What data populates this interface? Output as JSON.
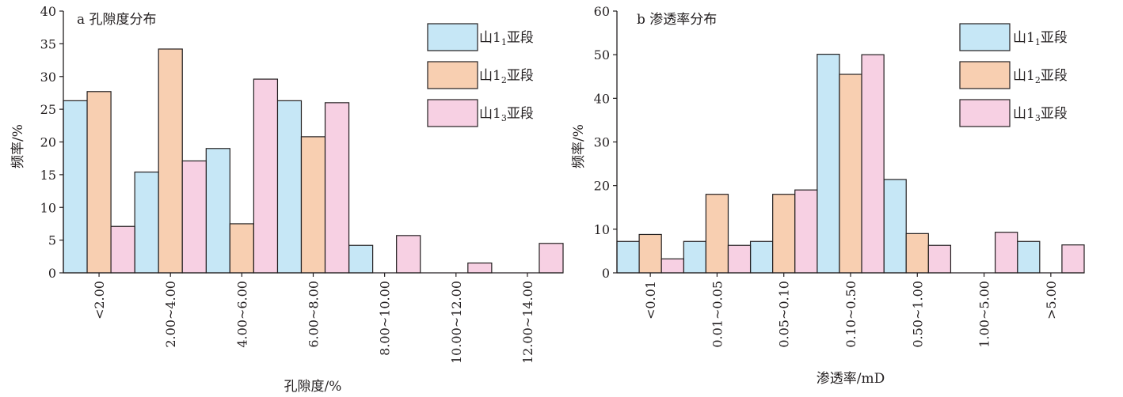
{
  "chart_data": [
    {
      "type": "bar",
      "title": "a 孔隙度分布",
      "xlabel": "孔隙度/%",
      "ylabel": "频率/%",
      "ylim": [
        0,
        40
      ],
      "yticks": [
        "0",
        "5",
        "10",
        "15",
        "20",
        "25",
        "30",
        "35",
        "40"
      ],
      "categories": [
        "<2.00",
        "2.00~4.00",
        "4.00~6.00",
        "6.00~8.00",
        "8.00~10.00",
        "10.00~12.00",
        "12.00~14.00"
      ],
      "series": [
        {
          "name": "山1₁亚段",
          "label_main": "山1",
          "label_sub": "1",
          "label_suffix": "亚段",
          "color": "#c6e7f6",
          "values": [
            26.3,
            15.4,
            19.0,
            26.3,
            4.2,
            0,
            0
          ]
        },
        {
          "name": "山1₂亚段",
          "label_main": "山1",
          "label_sub": "2",
          "label_suffix": "亚段",
          "color": "#f8cfb1",
          "values": [
            27.7,
            34.2,
            7.5,
            20.8,
            0,
            0,
            0
          ]
        },
        {
          "name": "山1₃亚段",
          "label_main": "山1",
          "label_sub": "3",
          "label_suffix": "亚段",
          "color": "#f7d0e3",
          "values": [
            7.1,
            17.1,
            29.6,
            26.0,
            5.7,
            1.5,
            4.5
          ]
        }
      ],
      "legend": "top-right",
      "grid": false
    },
    {
      "type": "bar",
      "title": "b 渗透率分布",
      "xlabel": "渗透率/mD",
      "ylabel": "频率/%",
      "ylim": [
        0,
        60
      ],
      "yticks": [
        "0",
        "10",
        "20",
        "30",
        "40",
        "50",
        "60"
      ],
      "categories": [
        "<0.01",
        "0.01~0.05",
        "0.05~0.10",
        "0.10~0.50",
        "0.50~1.00",
        "1.00~5.00",
        ">5.00"
      ],
      "series": [
        {
          "name": "山1₁亚段",
          "label_main": "山1",
          "label_sub": "1",
          "label_suffix": "亚段",
          "color": "#c6e7f6",
          "values": [
            7.2,
            7.2,
            7.2,
            50.1,
            21.4,
            0,
            7.2
          ]
        },
        {
          "name": "山1₂亚段",
          "label_main": "山1",
          "label_sub": "2",
          "label_suffix": "亚段",
          "color": "#f8cfb1",
          "values": [
            8.8,
            18.0,
            18.0,
            45.5,
            9.0,
            0,
            0
          ]
        },
        {
          "name": "山1₃亚段",
          "label_main": "山1",
          "label_sub": "3",
          "label_suffix": "亚段",
          "color": "#f7d0e3",
          "values": [
            3.2,
            6.3,
            19.0,
            50.0,
            6.3,
            9.3,
            6.4
          ]
        }
      ],
      "legend": "top-right",
      "grid": false
    }
  ]
}
